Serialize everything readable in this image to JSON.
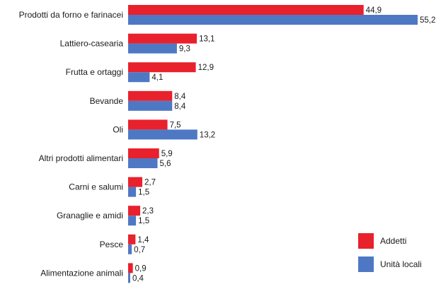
{
  "chart_data": {
    "type": "bar",
    "orientation": "horizontal",
    "categories": [
      "Prodotti da forno e farinacei",
      "Lattiero-casearia",
      "Frutta e ortaggi",
      "Bevande",
      "Oli",
      "Altri prodotti alimentari",
      "Carni e salumi",
      "Granaglie e amidi",
      "Pesce",
      "Alimentazione animali"
    ],
    "series": [
      {
        "name": "Addetti",
        "color": "#e8212d",
        "values": [
          44.9,
          13.1,
          12.9,
          8.4,
          7.5,
          5.9,
          2.7,
          2.3,
          1.4,
          0.9
        ],
        "labels": [
          "44,9",
          "13,1",
          "12,9",
          "8,4",
          "7,5",
          "5,9",
          "2,7",
          "2,3",
          "1,4",
          "0,9"
        ]
      },
      {
        "name": "Unità locali",
        "color": "#4f78c4",
        "values": [
          55.2,
          9.3,
          4.1,
          8.4,
          13.2,
          5.6,
          1.5,
          1.5,
          0.7,
          0.4
        ],
        "labels": [
          "55,2",
          "9,3",
          "4,1",
          "8,4",
          "13,2",
          "5,6",
          "1,5",
          "1,5",
          "0,7",
          "0,4"
        ]
      }
    ],
    "xlim": [
      0,
      55.2
    ],
    "grid": false,
    "legend": "bottom-right"
  }
}
